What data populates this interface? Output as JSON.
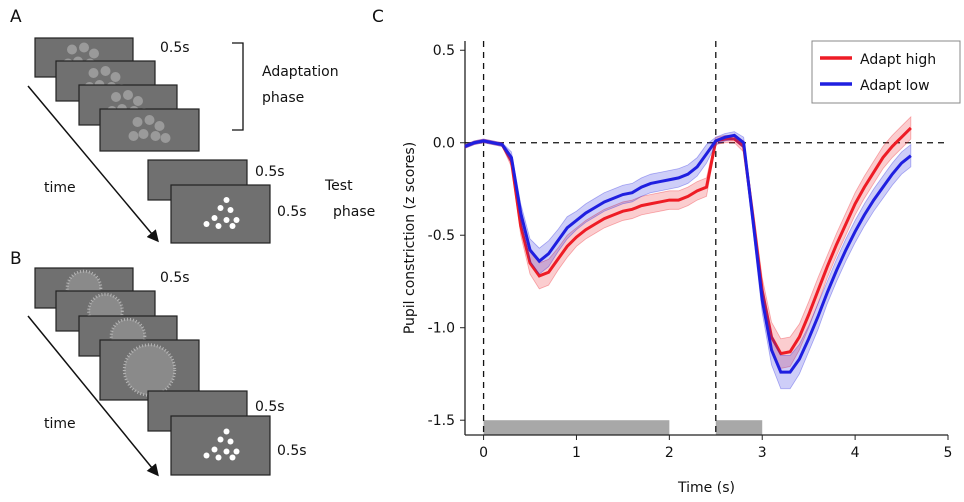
{
  "panel_a": {
    "label": "A",
    "adapt_durations": [
      "0.5s"
    ],
    "test_durations": [
      "0.5s",
      "0.5s"
    ],
    "adaptation_label": [
      "Adaptation",
      "phase"
    ],
    "test_label": [
      "Test",
      "phase"
    ],
    "time_label": "time"
  },
  "panel_b": {
    "label": "B",
    "durations": [
      "0.5s",
      "0.5s",
      "0.5s"
    ],
    "time_label": "time"
  },
  "chart_data": {
    "type": "line",
    "label": "C",
    "xlabel": "Time (s)",
    "ylabel": "Pupil constriction (z scores)",
    "xlim": [
      -0.2,
      5
    ],
    "ylim": [
      -1.58,
      0.55
    ],
    "xticks": [
      0,
      1,
      2,
      3,
      4,
      5
    ],
    "yticks": [
      0.5,
      {
        "value": 0,
        "label": "0.0"
      },
      -0.5,
      {
        "value": -1,
        "label": "-1.0"
      },
      -1.5
    ],
    "vlines": [
      0,
      2.5
    ],
    "hline": 0,
    "stimulus_periods": [
      [
        0,
        2
      ],
      [
        2.5,
        3
      ]
    ],
    "legend": "top-right",
    "x": [
      -0.2,
      -0.1,
      0,
      0.1,
      0.2,
      0.3,
      0.4,
      0.5,
      0.6,
      0.7,
      0.8,
      0.9,
      1,
      1.1,
      1.2,
      1.3,
      1.4,
      1.5,
      1.6,
      1.7,
      1.8,
      1.9,
      2,
      2.1,
      2.2,
      2.3,
      2.4,
      2.5,
      2.6,
      2.7,
      2.8,
      2.9,
      3,
      3.1,
      3.2,
      3.3,
      3.4,
      3.5,
      3.6,
      3.7,
      3.8,
      3.9,
      4,
      4.1,
      4.2,
      4.3,
      4.4,
      4.5,
      4.6
    ],
    "series": [
      {
        "name": "Adapt high",
        "color": "#ee1c25",
        "values": [
          -0.02,
          0,
          0.01,
          0,
          -0.01,
          -0.1,
          -0.45,
          -0.65,
          -0.72,
          -0.7,
          -0.63,
          -0.56,
          -0.51,
          -0.47,
          -0.44,
          -0.41,
          -0.39,
          -0.37,
          -0.36,
          -0.34,
          -0.33,
          -0.32,
          -0.31,
          -0.31,
          -0.29,
          -0.26,
          -0.24,
          0.01,
          0.02,
          0.02,
          -0.02,
          -0.4,
          -0.8,
          -1.05,
          -1.14,
          -1.13,
          -1.05,
          -0.93,
          -0.8,
          -0.67,
          -0.55,
          -0.44,
          -0.33,
          -0.24,
          -0.16,
          -0.08,
          -0.02,
          0.03,
          0.08
        ],
        "error": [
          0.01,
          0.01,
          0.01,
          0.01,
          0.01,
          0.03,
          0.05,
          0.06,
          0.07,
          0.07,
          0.06,
          0.06,
          0.05,
          0.05,
          0.05,
          0.05,
          0.05,
          0.05,
          0.05,
          0.05,
          0.05,
          0.05,
          0.05,
          0.05,
          0.05,
          0.05,
          0.05,
          0.02,
          0.02,
          0.02,
          0.03,
          0.05,
          0.07,
          0.08,
          0.08,
          0.08,
          0.07,
          0.07,
          0.07,
          0.06,
          0.06,
          0.06,
          0.06,
          0.06,
          0.06,
          0.06,
          0.06,
          0.06,
          0.06
        ]
      },
      {
        "name": "Adapt low",
        "color": "#1f1fe0",
        "values": [
          -0.02,
          0,
          0.01,
          0,
          -0.01,
          -0.08,
          -0.38,
          -0.58,
          -0.64,
          -0.6,
          -0.53,
          -0.46,
          -0.42,
          -0.38,
          -0.35,
          -0.32,
          -0.3,
          -0.28,
          -0.27,
          -0.24,
          -0.22,
          -0.21,
          -0.2,
          -0.19,
          -0.17,
          -0.13,
          -0.06,
          0.01,
          0.03,
          0.04,
          0,
          -0.42,
          -0.85,
          -1.12,
          -1.24,
          -1.24,
          -1.17,
          -1.06,
          -0.94,
          -0.81,
          -0.69,
          -0.58,
          -0.48,
          -0.39,
          -0.31,
          -0.24,
          -0.17,
          -0.11,
          -0.07
        ],
        "error": [
          0.01,
          0.01,
          0.01,
          0.01,
          0.01,
          0.03,
          0.05,
          0.06,
          0.07,
          0.07,
          0.06,
          0.06,
          0.05,
          0.05,
          0.05,
          0.05,
          0.05,
          0.05,
          0.05,
          0.05,
          0.05,
          0.05,
          0.05,
          0.05,
          0.05,
          0.05,
          0.05,
          0.02,
          0.02,
          0.02,
          0.03,
          0.05,
          0.07,
          0.08,
          0.09,
          0.09,
          0.08,
          0.07,
          0.07,
          0.06,
          0.06,
          0.06,
          0.06,
          0.06,
          0.06,
          0.06,
          0.06,
          0.06,
          0.06
        ]
      }
    ]
  }
}
